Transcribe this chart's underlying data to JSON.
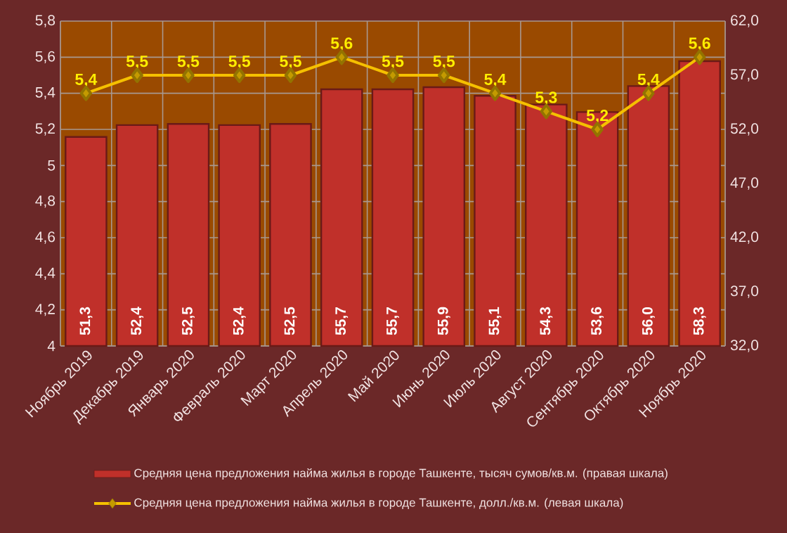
{
  "chart_data": {
    "type": "bar",
    "categories": [
      "Ноябрь 2019",
      "Декабрь 2019",
      "Январь 2020",
      "Февраль 2020",
      "Март 2020",
      "Апрель 2020",
      "Май 2020",
      "Июнь 2020",
      "Июль 2020",
      "Август 2020",
      "Сентябрь 2020",
      "Октябрь 2020",
      "Ноябрь 2020"
    ],
    "series": [
      {
        "name": "Средняя цена предложения найма жилья в городе Ташкенте, тысяч сумов/кв.м. (правая шкала)",
        "type": "bar",
        "axis": "y2",
        "color": "#c0302a",
        "values": [
          51.3,
          52.4,
          52.5,
          52.4,
          52.5,
          55.7,
          55.7,
          55.9,
          55.1,
          54.3,
          53.6,
          56.0,
          58.3
        ],
        "value_labels": [
          "51,3",
          "52,4",
          "52,5",
          "52,4",
          "52,5",
          "55,7",
          "55,7",
          "55,9",
          "55,1",
          "54,3",
          "53,6",
          "56,0",
          "58,3"
        ]
      },
      {
        "name": "Средняя цена предложения найма жилья в городе Ташкенте, долл./кв.м. (левая шкала)",
        "type": "line",
        "color": "#f5c000",
        "marker": "diamond",
        "values": [
          5.4,
          5.5,
          5.5,
          5.5,
          5.5,
          5.6,
          5.5,
          5.5,
          5.4,
          5.3,
          5.2,
          5.4,
          5.6
        ],
        "value_labels": [
          "5,4",
          "5,5",
          "5,5",
          "5,5",
          "5,5",
          "5,6",
          "5,5",
          "5,5",
          "5,4",
          "5,3",
          "5,2",
          "5,4",
          "5,6"
        ]
      }
    ],
    "ylim": [
      4,
      5.8
    ],
    "yticks": [
      4,
      {
        "value": 4.2,
        "label": "4,2"
      },
      {
        "value": 4.4,
        "label": "4,4"
      },
      {
        "value": 4.6,
        "label": "4,6"
      },
      {
        "value": 4.8,
        "label": "4,8"
      },
      5,
      {
        "value": 5.2,
        "label": "5,2"
      },
      {
        "value": 5.4,
        "label": "5,4"
      },
      {
        "value": 5.6,
        "label": "5,6"
      },
      {
        "value": 5.8,
        "label": "5,8"
      }
    ],
    "y2lim": [
      32,
      62
    ],
    "y2ticks": [
      {
        "value": 32,
        "label": "32,0"
      },
      {
        "value": 37,
        "label": "37,0"
      },
      {
        "value": 42,
        "label": "42,0"
      },
      {
        "value": 47,
        "label": "47,0"
      },
      {
        "value": 52,
        "label": "52,0"
      },
      {
        "value": 57,
        "label": "57,0"
      },
      {
        "value": 62,
        "label": "62,0"
      }
    ],
    "grid": true,
    "legend": "bottom"
  }
}
